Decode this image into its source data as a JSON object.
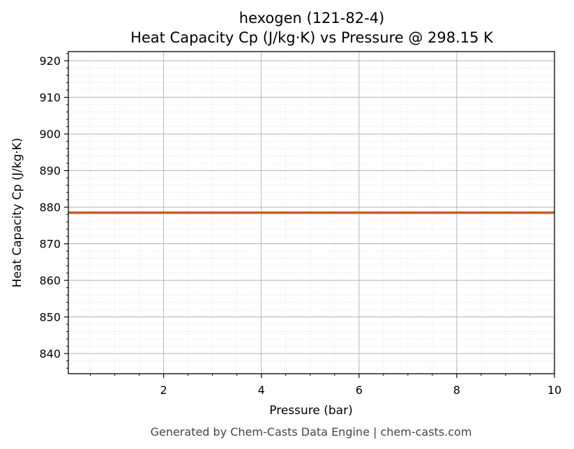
{
  "chart_data": {
    "type": "line",
    "title": "hexogen (121-82-4)",
    "subtitle": "Heat Capacity Cp (J/kg·K) vs Pressure @ 298.15 K",
    "xlabel": "Pressure (bar)",
    "ylabel": "Heat Capacity Cp (J/kg·K)",
    "xlim": [
      0.05,
      10
    ],
    "ylim": [
      834.5,
      922.5
    ],
    "x_ticks": [
      2,
      4,
      6,
      8,
      10
    ],
    "y_ticks": [
      840,
      850,
      860,
      870,
      880,
      890,
      900,
      910,
      920
    ],
    "x_minor_step": 0.5,
    "y_minor_step": 2,
    "grid": true,
    "series": [
      {
        "color": "#cc5a2a",
        "x": [
          0.05,
          1,
          2,
          3,
          4,
          5,
          6,
          7,
          8,
          9,
          10
        ],
        "y": [
          878.5,
          878.5,
          878.5,
          878.5,
          878.5,
          878.5,
          878.5,
          878.5,
          878.5,
          878.5,
          878.5
        ]
      }
    ]
  },
  "footer": "Generated by Chem-Casts Data Engine | chem-casts.com"
}
